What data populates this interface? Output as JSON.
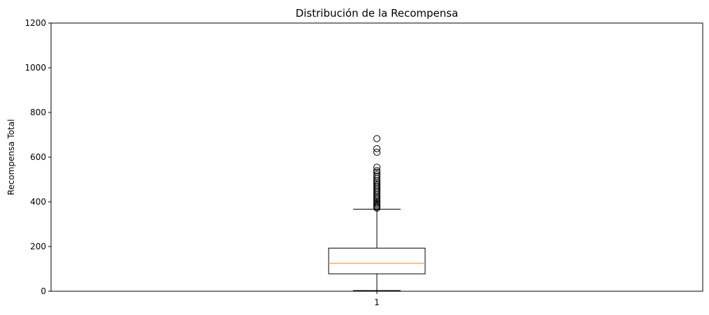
{
  "chart_data": {
    "type": "box",
    "title": "Distribución de la Recompensa",
    "xlabel": "",
    "ylabel": "Recompensa Total",
    "categories": [
      "1"
    ],
    "ylim": [
      0,
      1200
    ],
    "yticks": [
      0,
      200,
      400,
      600,
      800,
      1000,
      1200
    ],
    "grid": false,
    "box": {
      "whisker_low": 3,
      "q1": 78,
      "median": 125,
      "q3": 193,
      "whisker_high": 367,
      "outliers": [
        372,
        377,
        382,
        388,
        394,
        400,
        405,
        412,
        418,
        425,
        432,
        440,
        447,
        453,
        460,
        467,
        474,
        481,
        488,
        495,
        505,
        515,
        523,
        533,
        540,
        555,
        622,
        638,
        683
      ]
    },
    "colors": {
      "box": "#000000",
      "median": "#ff7f0e",
      "outlier_edge": "#000000"
    }
  }
}
